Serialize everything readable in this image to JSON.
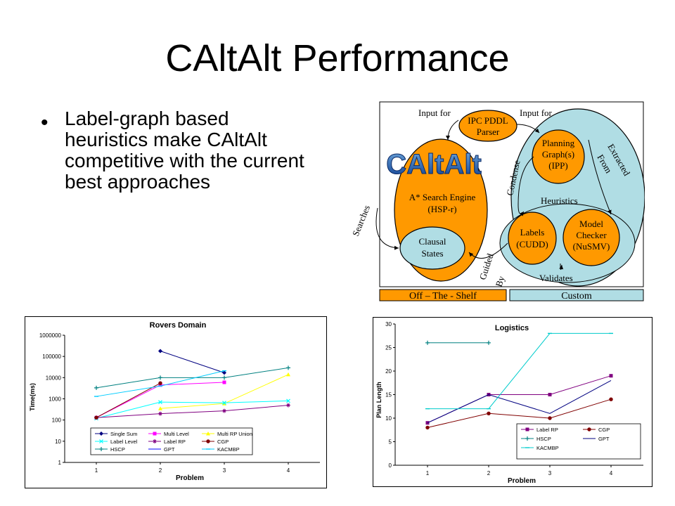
{
  "slide": {
    "title": "CAltAlt Performance",
    "bullet": "Label-graph based heuristics make CAltAlt competitive with the current best approaches"
  },
  "diagram": {
    "logo": "CAltAlt",
    "input_for_left": "Input for",
    "input_for_right": "Input for",
    "parser": [
      "IPC PDDL",
      "Parser"
    ],
    "planning_graph": [
      "Planning",
      "Graph(s)",
      "(IPP)"
    ],
    "extracted_from": [
      "Extracted",
      "From"
    ],
    "condense": "Condense",
    "heuristics": "Heuristics",
    "search_engine": [
      "A* Search Engine",
      "(HSP-r)"
    ],
    "searches": "Searches",
    "clausal_states": [
      "Clausal",
      "States"
    ],
    "labels": [
      "Labels",
      "(CUDD)"
    ],
    "model_checker": [
      "Model",
      "Checker",
      "(NuSMV)"
    ],
    "guided_by": [
      "Guided",
      "By"
    ],
    "validates": "Validates",
    "off_the_shelf": "Off – The - Shelf",
    "custom": "Custom",
    "colors": {
      "orange": "#ff9900",
      "light_blue": "#b0dde4"
    }
  },
  "chart_data": [
    {
      "type": "line",
      "title": "Rovers Domain",
      "xlabel": "Problem",
      "ylabel": "Time(ms)",
      "yscale": "log",
      "ylim": [
        1,
        1000000
      ],
      "yticks": [
        "1",
        "10",
        "100",
        "1000",
        "10000",
        "100000",
        "1000000"
      ],
      "x": [
        1,
        2,
        3,
        4
      ],
      "series": [
        {
          "name": "Single Sum",
          "color": "#000080",
          "marker": "diamond",
          "values": [
            null,
            180000,
            17000,
            null
          ]
        },
        {
          "name": "Multi Level",
          "color": "#ff00ff",
          "marker": "square",
          "values": [
            130,
            4500,
            6000,
            null
          ]
        },
        {
          "name": "Multi RP Union",
          "color": "#ffff00",
          "marker": "triangle",
          "values": [
            null,
            350,
            600,
            14000
          ]
        },
        {
          "name": "Label Level",
          "color": "#00ffff",
          "marker": "x",
          "values": [
            120,
            700,
            650,
            800
          ]
        },
        {
          "name": "Label RP",
          "color": "#800080",
          "marker": "star",
          "values": [
            130,
            200,
            270,
            500
          ]
        },
        {
          "name": "CGP",
          "color": "#800000",
          "marker": "circle",
          "values": [
            130,
            5500,
            null,
            null
          ]
        },
        {
          "name": "HSCP",
          "color": "#008080",
          "marker": "plus",
          "values": [
            3300,
            10000,
            10000,
            29000
          ]
        },
        {
          "name": "GPT",
          "color": "#0000ff",
          "marker": "none",
          "values": [
            null,
            null,
            null,
            null
          ]
        },
        {
          "name": "KACMBP",
          "color": "#00ccff",
          "marker": "dash",
          "values": [
            1300,
            4000,
            21000,
            null
          ]
        }
      ],
      "legend_position": "bottom"
    },
    {
      "type": "line",
      "title": "Logistics",
      "xlabel": "Problem",
      "ylabel": "Plan Length",
      "ylim": [
        0,
        30
      ],
      "yticks": [
        "0",
        "5",
        "10",
        "15",
        "20",
        "25",
        "30"
      ],
      "x": [
        1,
        2,
        3,
        4
      ],
      "series": [
        {
          "name": "Label RP",
          "color": "#800080",
          "marker": "square",
          "values": [
            9,
            15,
            15,
            19
          ]
        },
        {
          "name": "CGP",
          "color": "#800000",
          "marker": "circle",
          "values": [
            8,
            11,
            10,
            14
          ]
        },
        {
          "name": "HSCP",
          "color": "#008080",
          "marker": "plus",
          "values": [
            26,
            26,
            null,
            null
          ]
        },
        {
          "name": "GPT",
          "color": "#000080",
          "marker": "none",
          "values": [
            9,
            15,
            11,
            18
          ]
        },
        {
          "name": "KACMBP",
          "color": "#00cccc",
          "marker": "dash",
          "values": [
            12,
            12,
            28,
            28
          ]
        }
      ],
      "legend_position": "bottom-right"
    }
  ]
}
